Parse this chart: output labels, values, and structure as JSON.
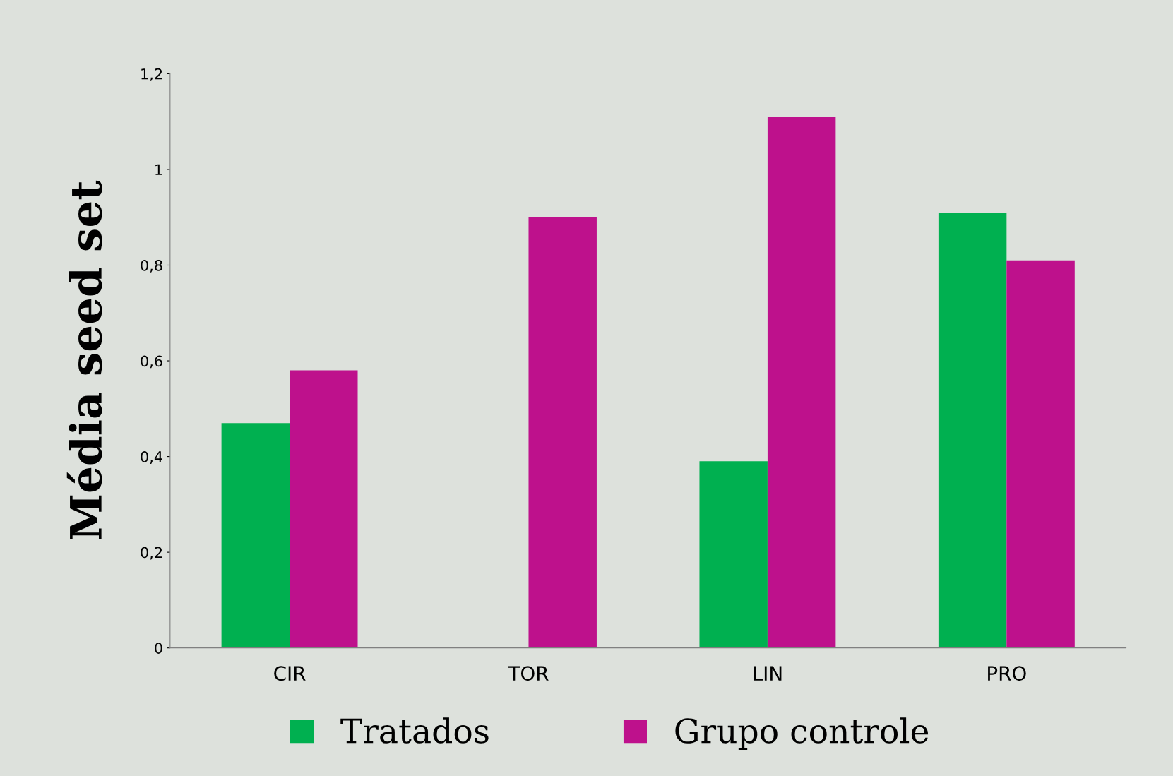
{
  "chart_data": {
    "type": "bar",
    "ylabel": "Média seed set",
    "categories": [
      "CIR",
      "TOR",
      "LIN",
      "PRO"
    ],
    "series": [
      {
        "name": "Tratados",
        "color": "#00b050",
        "values": [
          0.47,
          0,
          0.39,
          0.91
        ]
      },
      {
        "name": "Grupo controle",
        "color": "#be118c",
        "values": [
          0.58,
          0.9,
          1.11,
          0.81
        ]
      }
    ],
    "ylim": [
      0,
      1.2
    ],
    "yticks": [
      0,
      {
        "value": 0.2,
        "label": "0,2"
      },
      {
        "value": 0.4,
        "label": "0,4"
      },
      {
        "value": 0.6,
        "label": "0,6"
      },
      {
        "value": 0.8,
        "label": "0,8"
      },
      1,
      {
        "value": 1.2,
        "label": "1,2"
      }
    ],
    "grid": false,
    "legend": "bottom"
  }
}
